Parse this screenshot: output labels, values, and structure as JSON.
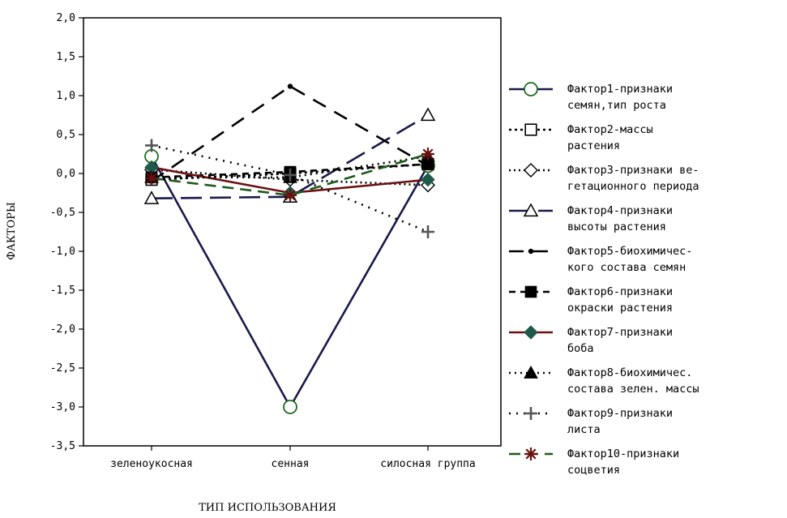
{
  "chart_data": {
    "type": "line",
    "xlabel": "ТИП ИСПОЛЬЗОВАНИЯ",
    "ylabel": "ФАКТОРЫ",
    "categories": [
      "зеленоукосная",
      "сенная",
      "силосная группа"
    ],
    "ylim": [
      -3.5,
      2.0
    ],
    "yticks": [
      "2,0",
      "1,5",
      "1,0",
      "0,5",
      "0,0",
      "-0,5",
      "-1,0",
      "-1,5",
      "-2,0",
      "-2,5",
      "-3,0",
      "-3,5"
    ],
    "ytick_values": [
      2.0,
      1.5,
      1.0,
      0.5,
      0.0,
      -0.5,
      -1.0,
      -1.5,
      -2.0,
      -2.5,
      -3.0,
      -3.5
    ],
    "legend_position": "right",
    "grid": false,
    "series": [
      {
        "name": "Фактор1-признаки семян,тип роста",
        "legend_lines": [
          "Фактор1-признаки",
          "семян,тип роста"
        ],
        "values": [
          0.22,
          -3.0,
          0.1
        ],
        "color": "#1a1a4a",
        "dash": "",
        "marker": "circle-open",
        "marker_color": "#1e6b1e"
      },
      {
        "name": "Фактор2-массы растения",
        "legend_lines": [
          "Фактор2-массы",
          "растения"
        ],
        "values": [
          -0.08,
          0.0,
          0.12
        ],
        "color": "#000000",
        "dash": "3,4",
        "marker": "square-open",
        "marker_color": "#000000"
      },
      {
        "name": "Фактор3-признаки вегетационного периода",
        "legend_lines": [
          "Фактор3-признаки ве-",
          "гетационного периода"
        ],
        "values": [
          0.05,
          -0.08,
          -0.15
        ],
        "color": "#000000",
        "dash": "2,4",
        "marker": "diamond-open",
        "marker_color": "#000000"
      },
      {
        "name": "Фактор4-признаки высоты растения",
        "legend_lines": [
          "Фактор4-признаки",
          "высоты растения"
        ],
        "values": [
          -0.32,
          -0.3,
          0.75
        ],
        "color": "#1a1a4a",
        "dash": "26,10",
        "marker": "triangle-open",
        "marker_color": "#000000"
      },
      {
        "name": "Фактор5-биохимического состава семян",
        "legend_lines": [
          "Фактор5-биохимичес-",
          "кого состава семян"
        ],
        "values": [
          -0.1,
          1.12,
          0.1
        ],
        "color": "#000000",
        "dash": "18,12",
        "marker": "dot",
        "marker_color": "#000000"
      },
      {
        "name": "Фактор6-признаки окраски растения",
        "legend_lines": [
          "Фактор6-признаки",
          "окраски растения"
        ],
        "values": [
          -0.05,
          0.02,
          0.12
        ],
        "color": "#000000",
        "dash": "8,6",
        "marker": "square-filled",
        "marker_color": "#000000"
      },
      {
        "name": "Фактор7-признаки боба",
        "legend_lines": [
          "Фактор7-признаки",
          "боба"
        ],
        "values": [
          0.08,
          -0.25,
          -0.08
        ],
        "color": "#6b1010",
        "dash": "",
        "marker": "diamond-filled",
        "marker_color": "#1e5a4a"
      },
      {
        "name": "Фактор8-биохимичес. состава зелен. массы",
        "legend_lines": [
          "Фактор8-биохимичес.",
          "состава зелен. массы"
        ],
        "values": [
          -0.05,
          -0.05,
          0.22
        ],
        "color": "#000000",
        "dash": "2,5",
        "marker": "triangle-filled",
        "marker_color": "#000000"
      },
      {
        "name": "Фактор9-признаки листа",
        "legend_lines": [
          "Фактор9-признаки",
          "листа"
        ],
        "values": [
          0.36,
          -0.02,
          -0.75
        ],
        "color": "#000000",
        "dash": "2,7",
        "marker": "plus",
        "marker_color": "#555555"
      },
      {
        "name": "Фактор10-признаки соцветия",
        "legend_lines": [
          "Фактор10-признаки",
          "соцветия"
        ],
        "values": [
          -0.06,
          -0.28,
          0.25
        ],
        "color": "#1e5a1e",
        "dash": "14,8",
        "marker": "asterisk",
        "marker_color": "#6b1010"
      }
    ]
  }
}
